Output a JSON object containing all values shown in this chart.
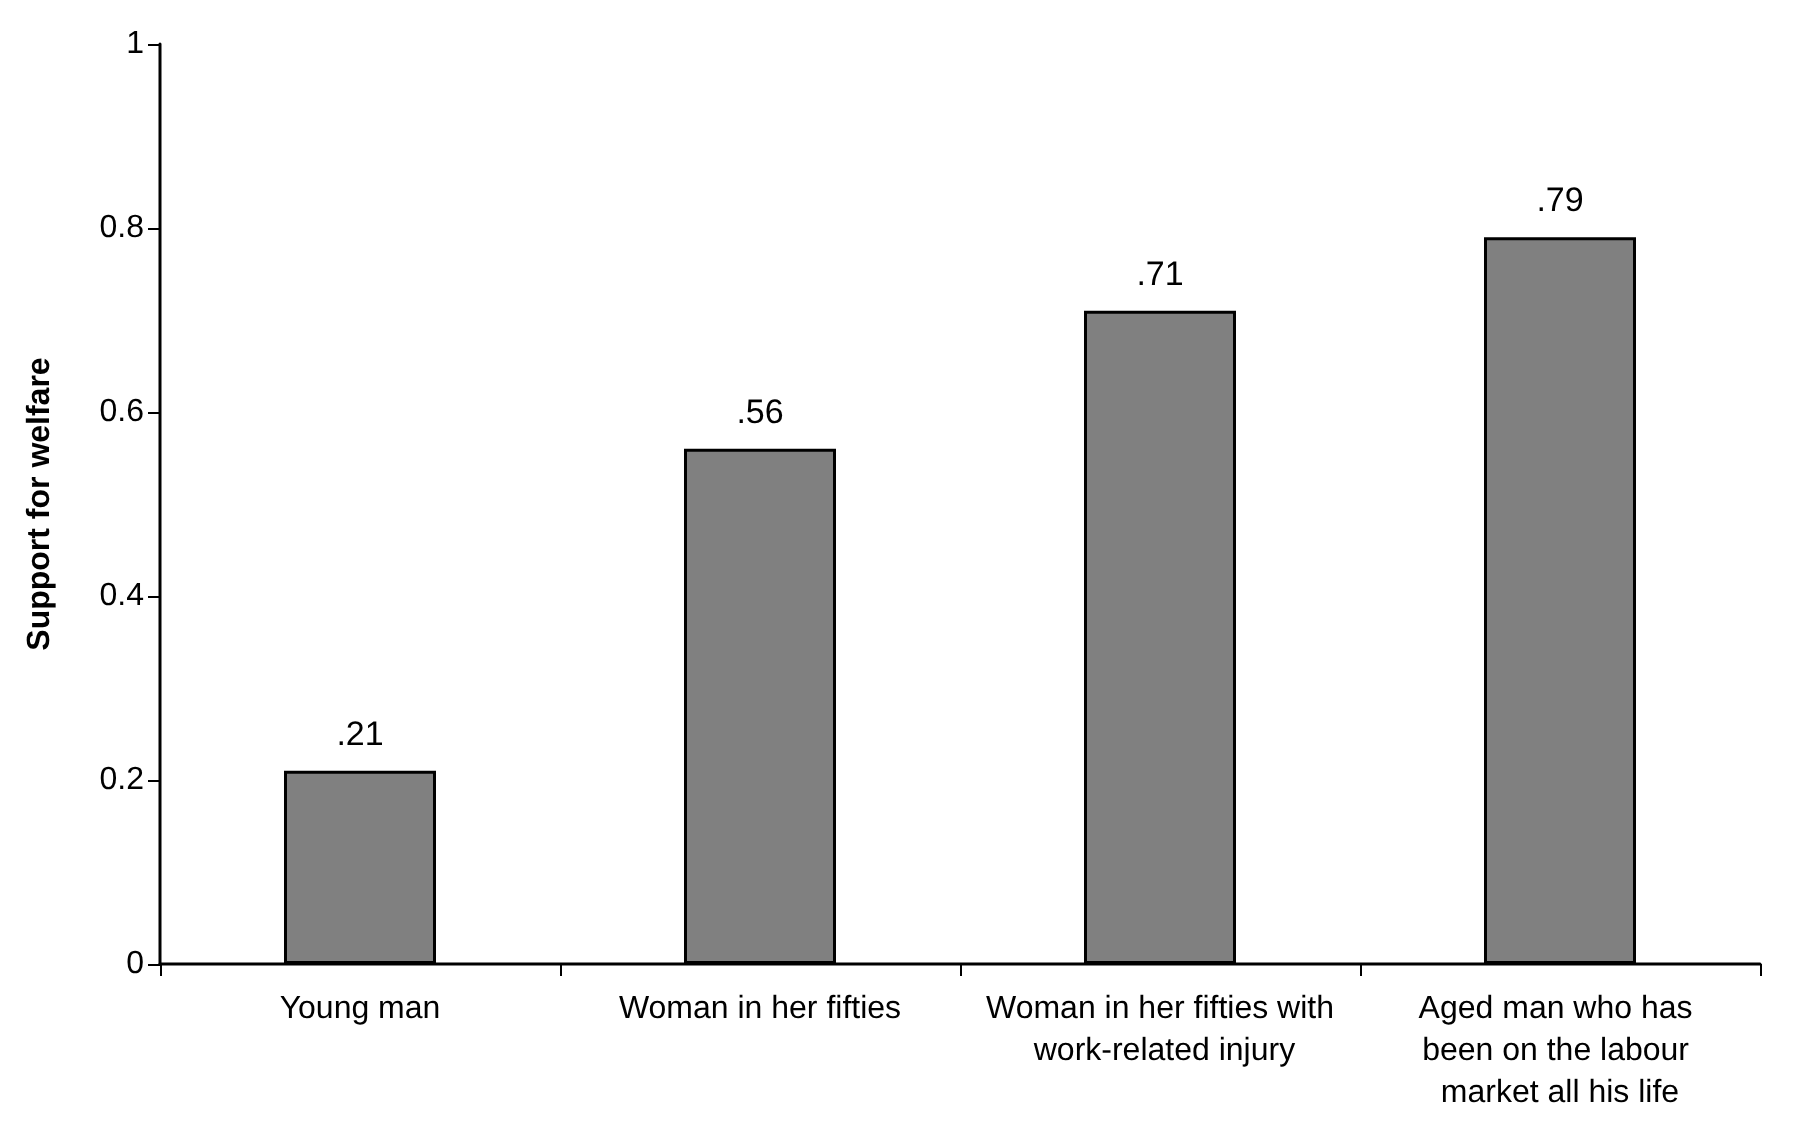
{
  "chart_data": {
    "type": "bar",
    "ylabel": "Support for welfare",
    "categories": [
      "Young man",
      "Woman in her fifties",
      "Woman in her fifties with work-related injury",
      "Aged man who has been on the labour market all his life"
    ],
    "values": [
      0.21,
      0.56,
      0.71,
      0.79
    ],
    "value_labels": [
      ".21",
      ".56",
      ".71",
      ".79"
    ],
    "color": "#808080",
    "ylim": [
      0,
      1
    ],
    "yticks": [
      0,
      0.2,
      0.4,
      0.6,
      0.8,
      1
    ],
    "grid": false
  }
}
